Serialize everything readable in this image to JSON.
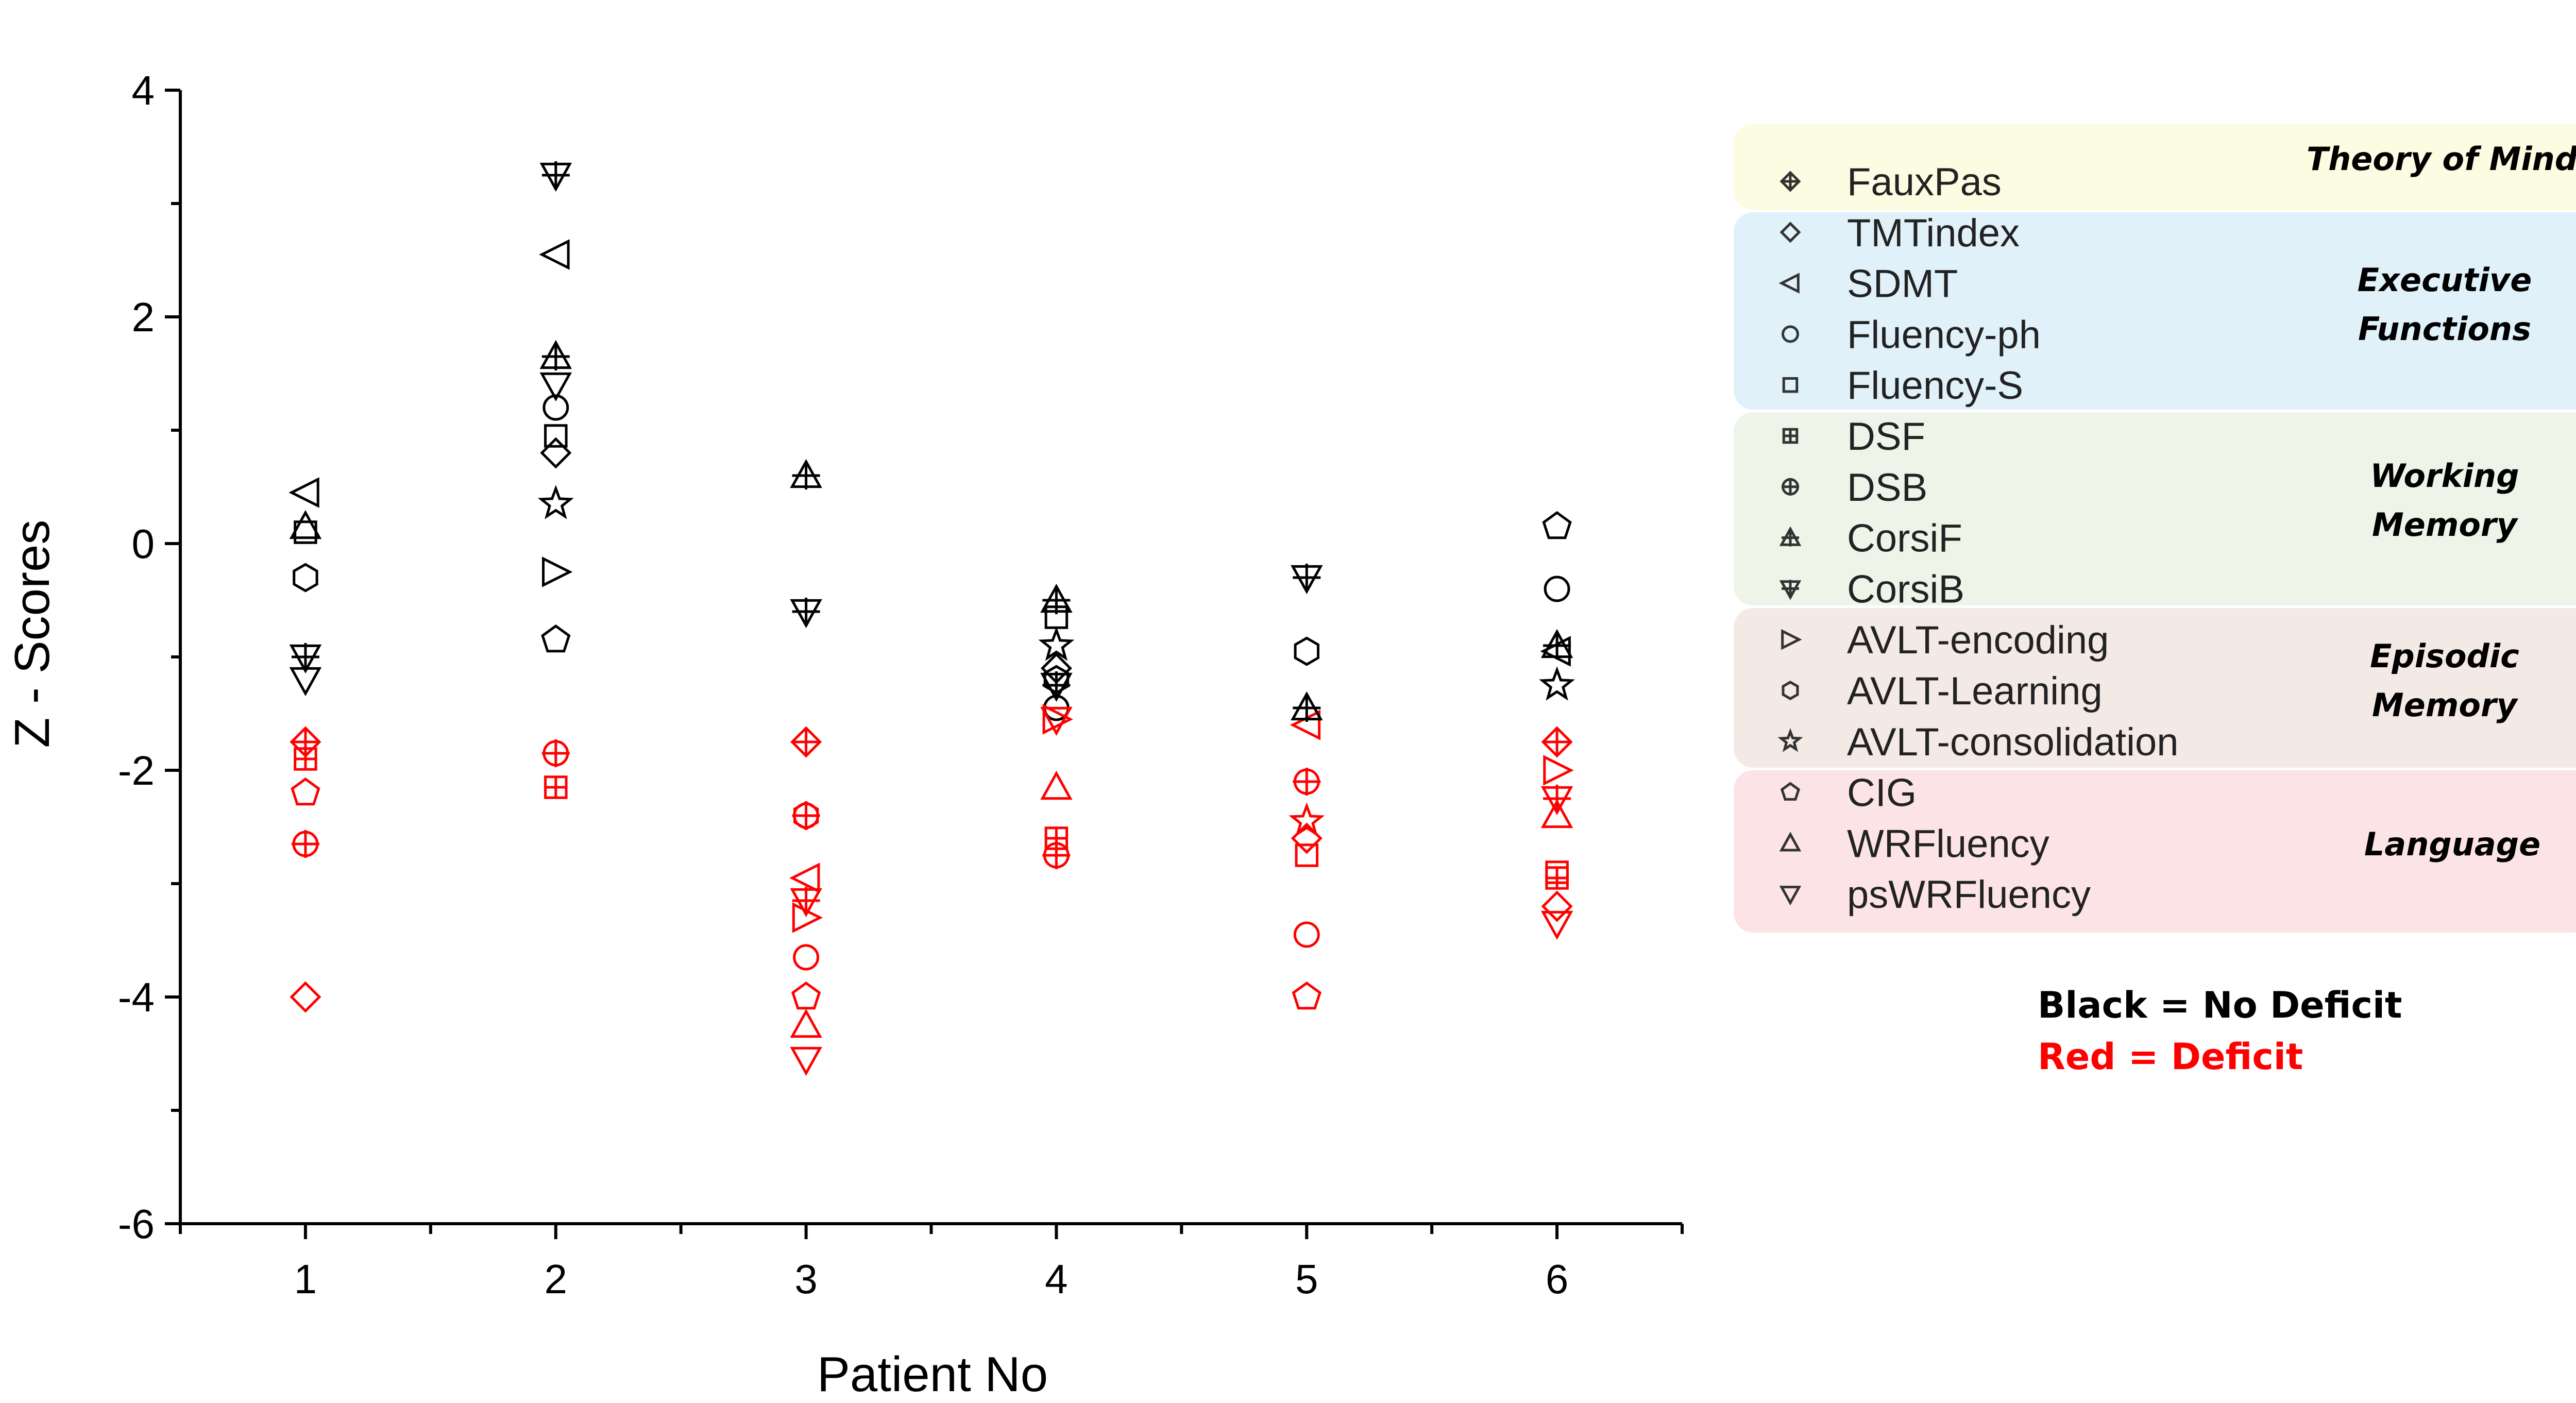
{
  "chart_data": {
    "type": "scatter",
    "xlabel": "Patient No",
    "ylabel": "Z - Scores",
    "xlim": [
      0.5,
      6.5
    ],
    "ylim": [
      -6,
      4
    ],
    "x_ticks": [
      1,
      2,
      3,
      4,
      5,
      6
    ],
    "y_ticks": [
      -6,
      -4,
      -2,
      0,
      2,
      4
    ],
    "colors": {
      "no_deficit": "#000000",
      "deficit": "#ff0000"
    },
    "series": [
      {
        "name": "FauxPas",
        "symbol": "diamond-cross",
        "group": "tom",
        "points": [
          [
            1,
            -1.75,
            "d"
          ],
          [
            3,
            -1.75,
            "d"
          ],
          [
            6,
            -1.75,
            "d"
          ]
        ]
      },
      {
        "name": "TMTindex",
        "symbol": "diamond",
        "group": "ef",
        "points": [
          [
            1,
            -4.0,
            "d"
          ],
          [
            2,
            0.8,
            "n"
          ],
          [
            4,
            -1.1,
            "n"
          ],
          [
            5,
            -2.6,
            "d"
          ],
          [
            6,
            -3.2,
            "d"
          ]
        ]
      },
      {
        "name": "SDMT",
        "symbol": "triangle-left",
        "group": "ef",
        "points": [
          [
            1,
            0.45,
            "n"
          ],
          [
            2,
            2.55,
            "n"
          ],
          [
            3,
            -2.95,
            "d"
          ],
          [
            5,
            -1.6,
            "d"
          ],
          [
            6,
            -0.95,
            "n"
          ]
        ]
      },
      {
        "name": "Fluency-ph",
        "symbol": "circle",
        "group": "ef",
        "points": [
          [
            2,
            1.2,
            "n"
          ],
          [
            3,
            -3.65,
            "d"
          ],
          [
            4,
            -1.45,
            "n"
          ],
          [
            5,
            -3.45,
            "d"
          ],
          [
            6,
            -0.4,
            "n"
          ]
        ]
      },
      {
        "name": "Fluency-S",
        "symbol": "square",
        "group": "ef",
        "points": [
          [
            1,
            0.1,
            "n"
          ],
          [
            2,
            0.95,
            "n"
          ],
          [
            4,
            -0.65,
            "n"
          ],
          [
            5,
            -2.75,
            "d"
          ],
          [
            6,
            -2.9,
            "d"
          ]
        ]
      },
      {
        "name": "DSF",
        "symbol": "square-cross",
        "group": "wm",
        "points": [
          [
            1,
            -1.9,
            "d"
          ],
          [
            2,
            -2.15,
            "d"
          ],
          [
            4,
            -2.6,
            "d"
          ],
          [
            6,
            -2.95,
            "d"
          ]
        ]
      },
      {
        "name": "DSB",
        "symbol": "circle-cross",
        "group": "wm",
        "points": [
          [
            1,
            -2.65,
            "d"
          ],
          [
            2,
            -1.85,
            "d"
          ],
          [
            3,
            -2.4,
            "d"
          ],
          [
            4,
            -2.75,
            "d"
          ],
          [
            5,
            -2.1,
            "d"
          ]
        ]
      },
      {
        "name": "CorsiF",
        "symbol": "triangle-up-cross",
        "group": "wm",
        "points": [
          [
            2,
            1.65,
            "n"
          ],
          [
            3,
            0.6,
            "n"
          ],
          [
            4,
            -0.5,
            "n"
          ],
          [
            5,
            -1.45,
            "n"
          ],
          [
            6,
            -0.9,
            "n"
          ]
        ]
      },
      {
        "name": "CorsiB",
        "symbol": "triangle-down-cross",
        "group": "wm",
        "points": [
          [
            1,
            -1.0,
            "n"
          ],
          [
            2,
            3.25,
            "n"
          ],
          [
            3,
            -0.6,
            "n"
          ],
          [
            3,
            -3.15,
            "d"
          ],
          [
            4,
            -1.25,
            "n"
          ],
          [
            5,
            -0.3,
            "n"
          ],
          [
            6,
            -2.25,
            "d"
          ]
        ]
      },
      {
        "name": "AVLT-encoding",
        "symbol": "triangle-right",
        "group": "em",
        "points": [
          [
            2,
            -0.25,
            "n"
          ],
          [
            3,
            -3.3,
            "d"
          ],
          [
            4,
            -1.55,
            "d"
          ],
          [
            6,
            -2.0,
            "d"
          ]
        ]
      },
      {
        "name": "AVLT-Learning",
        "symbol": "hexagon",
        "group": "em",
        "points": [
          [
            1,
            -0.3,
            "n"
          ],
          [
            3,
            -2.4,
            "d"
          ],
          [
            4,
            -1.2,
            "n"
          ],
          [
            5,
            -0.95,
            "n"
          ]
        ]
      },
      {
        "name": "AVLT-consolidation",
        "symbol": "star",
        "group": "em",
        "points": [
          [
            2,
            0.35,
            "n"
          ],
          [
            4,
            -0.9,
            "n"
          ],
          [
            5,
            -2.45,
            "d"
          ],
          [
            6,
            -1.25,
            "n"
          ]
        ]
      },
      {
        "name": "CIG",
        "symbol": "pentagon",
        "group": "lang",
        "points": [
          [
            1,
            -2.2,
            "d"
          ],
          [
            2,
            -0.85,
            "n"
          ],
          [
            3,
            -4.0,
            "d"
          ],
          [
            5,
            -4.0,
            "d"
          ],
          [
            6,
            0.15,
            "n"
          ]
        ]
      },
      {
        "name": "WRFluency",
        "symbol": "triangle-up",
        "group": "lang",
        "points": [
          [
            1,
            0.15,
            "n"
          ],
          [
            3,
            -4.25,
            "d"
          ],
          [
            4,
            -2.15,
            "d"
          ],
          [
            6,
            -2.4,
            "d"
          ]
        ]
      },
      {
        "name": "psWRFluency",
        "symbol": "triangle-down",
        "group": "lang",
        "points": [
          [
            1,
            -1.2,
            "n"
          ],
          [
            2,
            1.4,
            "n"
          ],
          [
            3,
            -4.55,
            "d"
          ],
          [
            4,
            -1.55,
            "d"
          ],
          [
            6,
            -3.35,
            "d"
          ]
        ]
      }
    ],
    "groups": [
      {
        "id": "tom",
        "label_lines": [
          "Theory of Mind"
        ],
        "color": "#fcfce2"
      },
      {
        "id": "ef",
        "label_lines": [
          "Executive",
          "Functions"
        ],
        "color": "#e0f1fa"
      },
      {
        "id": "wm",
        "label_lines": [
          "Working",
          "Memory"
        ],
        "color": "#eef4e8"
      },
      {
        "id": "em",
        "label_lines": [
          "Episodic",
          "Memory"
        ],
        "color": "#f3e9e5"
      },
      {
        "id": "lang",
        "label_lines": [
          "Language"
        ],
        "color": "#fce4e6"
      }
    ],
    "notes": [
      {
        "text": "Black = No Deficit",
        "color": "#000000"
      },
      {
        "text": "Red = Deficit",
        "color": "#ff0000"
      }
    ]
  }
}
